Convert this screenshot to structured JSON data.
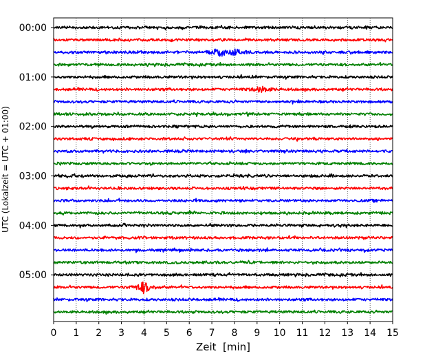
{
  "chart_data": {
    "type": "line",
    "title": "",
    "xlabel": "Zeit  [min]",
    "ylabel": "UTC (Lokalzeit = UTC + 01:00)",
    "xlim": [
      0,
      15
    ],
    "x_ticks": [
      "0",
      "1",
      "2",
      "3",
      "4",
      "5",
      "6",
      "7",
      "8",
      "9",
      "10",
      "11",
      "12",
      "13",
      "14",
      "15"
    ],
    "grid": "vertical dotted lines at each minute",
    "y_ticks": [
      "00:00",
      "01:00",
      "02:00",
      "03:00",
      "04:00",
      "05:00"
    ],
    "rows_per_hour": 4,
    "minutes_per_row": 15,
    "trace_colors": [
      "#000000",
      "#ff0000",
      "#0000ff",
      "#008000"
    ],
    "rows": [
      {
        "start": "00:00",
        "color": "#000000"
      },
      {
        "start": "00:15",
        "color": "#ff0000"
      },
      {
        "start": "00:30",
        "color": "#0000ff",
        "events": [
          {
            "minute": 7.3,
            "amplitude": 1.0
          },
          {
            "minute": 8.1,
            "amplitude": 0.6
          }
        ]
      },
      {
        "start": "00:45",
        "color": "#008000"
      },
      {
        "start": "01:00",
        "color": "#000000"
      },
      {
        "start": "01:15",
        "color": "#ff0000",
        "events": [
          {
            "minute": 9.2,
            "amplitude": 0.7
          }
        ]
      },
      {
        "start": "01:30",
        "color": "#0000ff"
      },
      {
        "start": "01:45",
        "color": "#008000"
      },
      {
        "start": "02:00",
        "color": "#000000"
      },
      {
        "start": "02:15",
        "color": "#ff0000"
      },
      {
        "start": "02:30",
        "color": "#0000ff"
      },
      {
        "start": "02:45",
        "color": "#008000"
      },
      {
        "start": "03:00",
        "color": "#000000"
      },
      {
        "start": "03:15",
        "color": "#ff0000"
      },
      {
        "start": "03:30",
        "color": "#0000ff"
      },
      {
        "start": "03:45",
        "color": "#008000"
      },
      {
        "start": "04:00",
        "color": "#000000"
      },
      {
        "start": "04:15",
        "color": "#ff0000"
      },
      {
        "start": "04:30",
        "color": "#0000ff"
      },
      {
        "start": "04:45",
        "color": "#008000"
      },
      {
        "start": "05:00",
        "color": "#000000"
      },
      {
        "start": "05:15",
        "color": "#ff0000",
        "events": [
          {
            "minute": 4.0,
            "amplitude": 1.2
          }
        ]
      },
      {
        "start": "05:30",
        "color": "#0000ff"
      },
      {
        "start": "05:45",
        "color": "#008000"
      }
    ]
  }
}
